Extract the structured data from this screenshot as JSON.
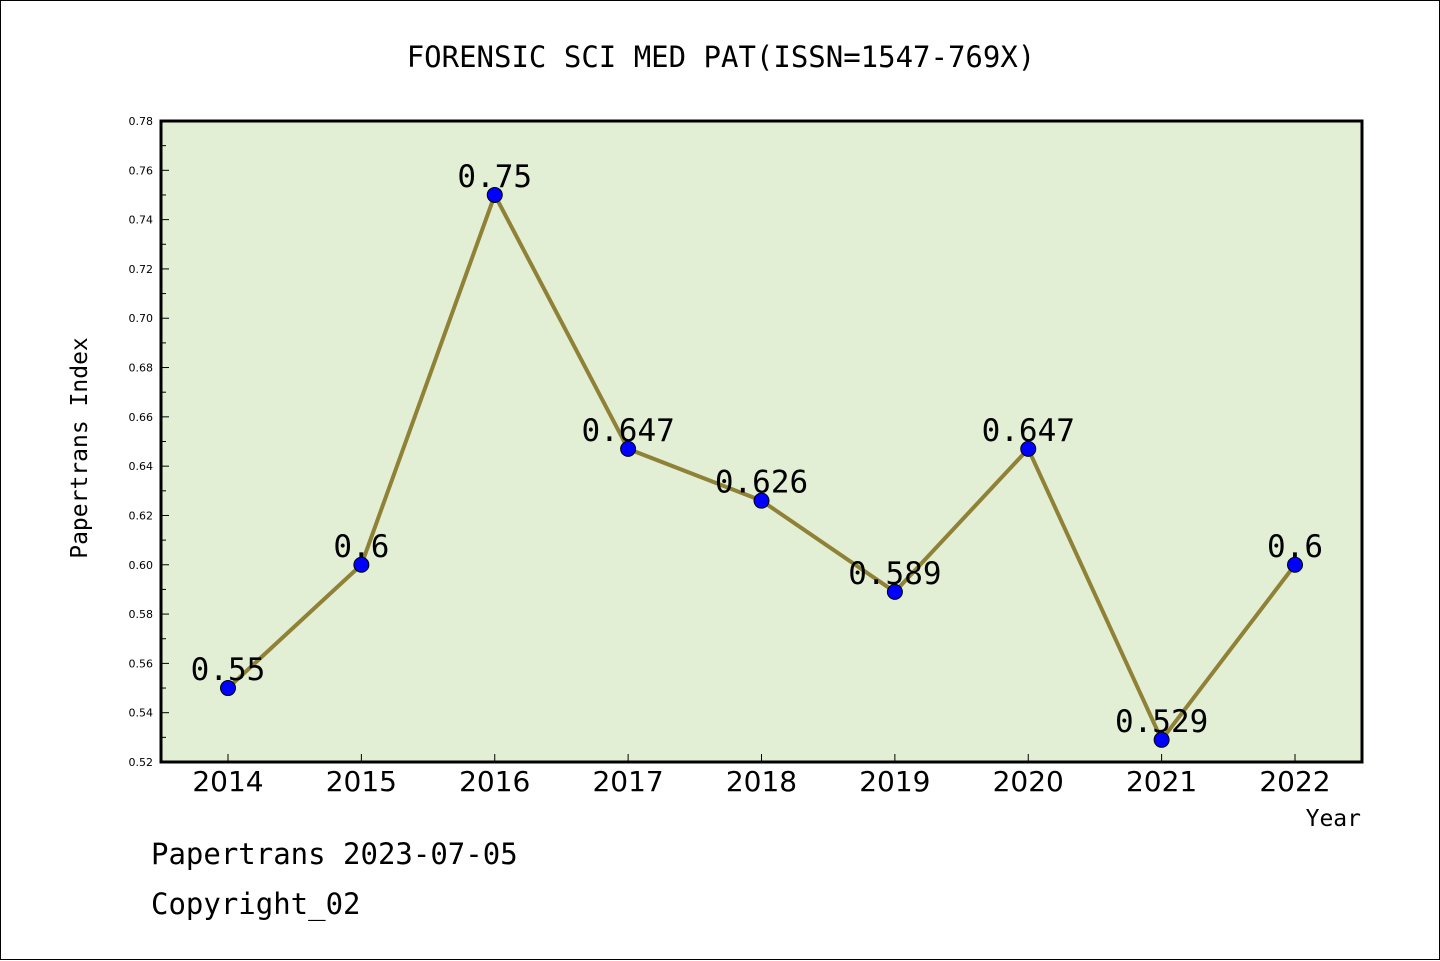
{
  "chart_data": {
    "type": "line",
    "title": "FORENSIC SCI MED PAT(ISSN=1547-769X)",
    "xlabel": "Year",
    "ylabel": "Papertrans Index",
    "categories": [
      "2014",
      "2015",
      "2016",
      "2017",
      "2018",
      "2019",
      "2020",
      "2021",
      "2022"
    ],
    "series": [
      {
        "values": [
          0.55,
          0.6,
          0.75,
          0.647,
          0.626,
          0.589,
          0.647,
          0.529,
          0.6
        ],
        "labels": [
          "0.55",
          "0.6",
          "0.75",
          "0.647",
          "0.626",
          "0.589",
          "0.647",
          "0.529",
          "0.6"
        ]
      }
    ],
    "ylim": [
      0.52,
      0.78
    ],
    "yticks": [
      "0.52",
      "0.54",
      "0.56",
      "0.58",
      "0.60",
      "0.62",
      "0.64",
      "0.66",
      "0.68",
      "0.70",
      "0.72",
      "0.74",
      "0.76",
      "0.78"
    ],
    "grid": false,
    "colors": {
      "plot_background": "#e2efd5",
      "line": "#8f8135",
      "marker": "#0000ff"
    }
  },
  "footer": {
    "source": "Papertrans 2023-07-05",
    "copyright": "Copyright_02"
  }
}
